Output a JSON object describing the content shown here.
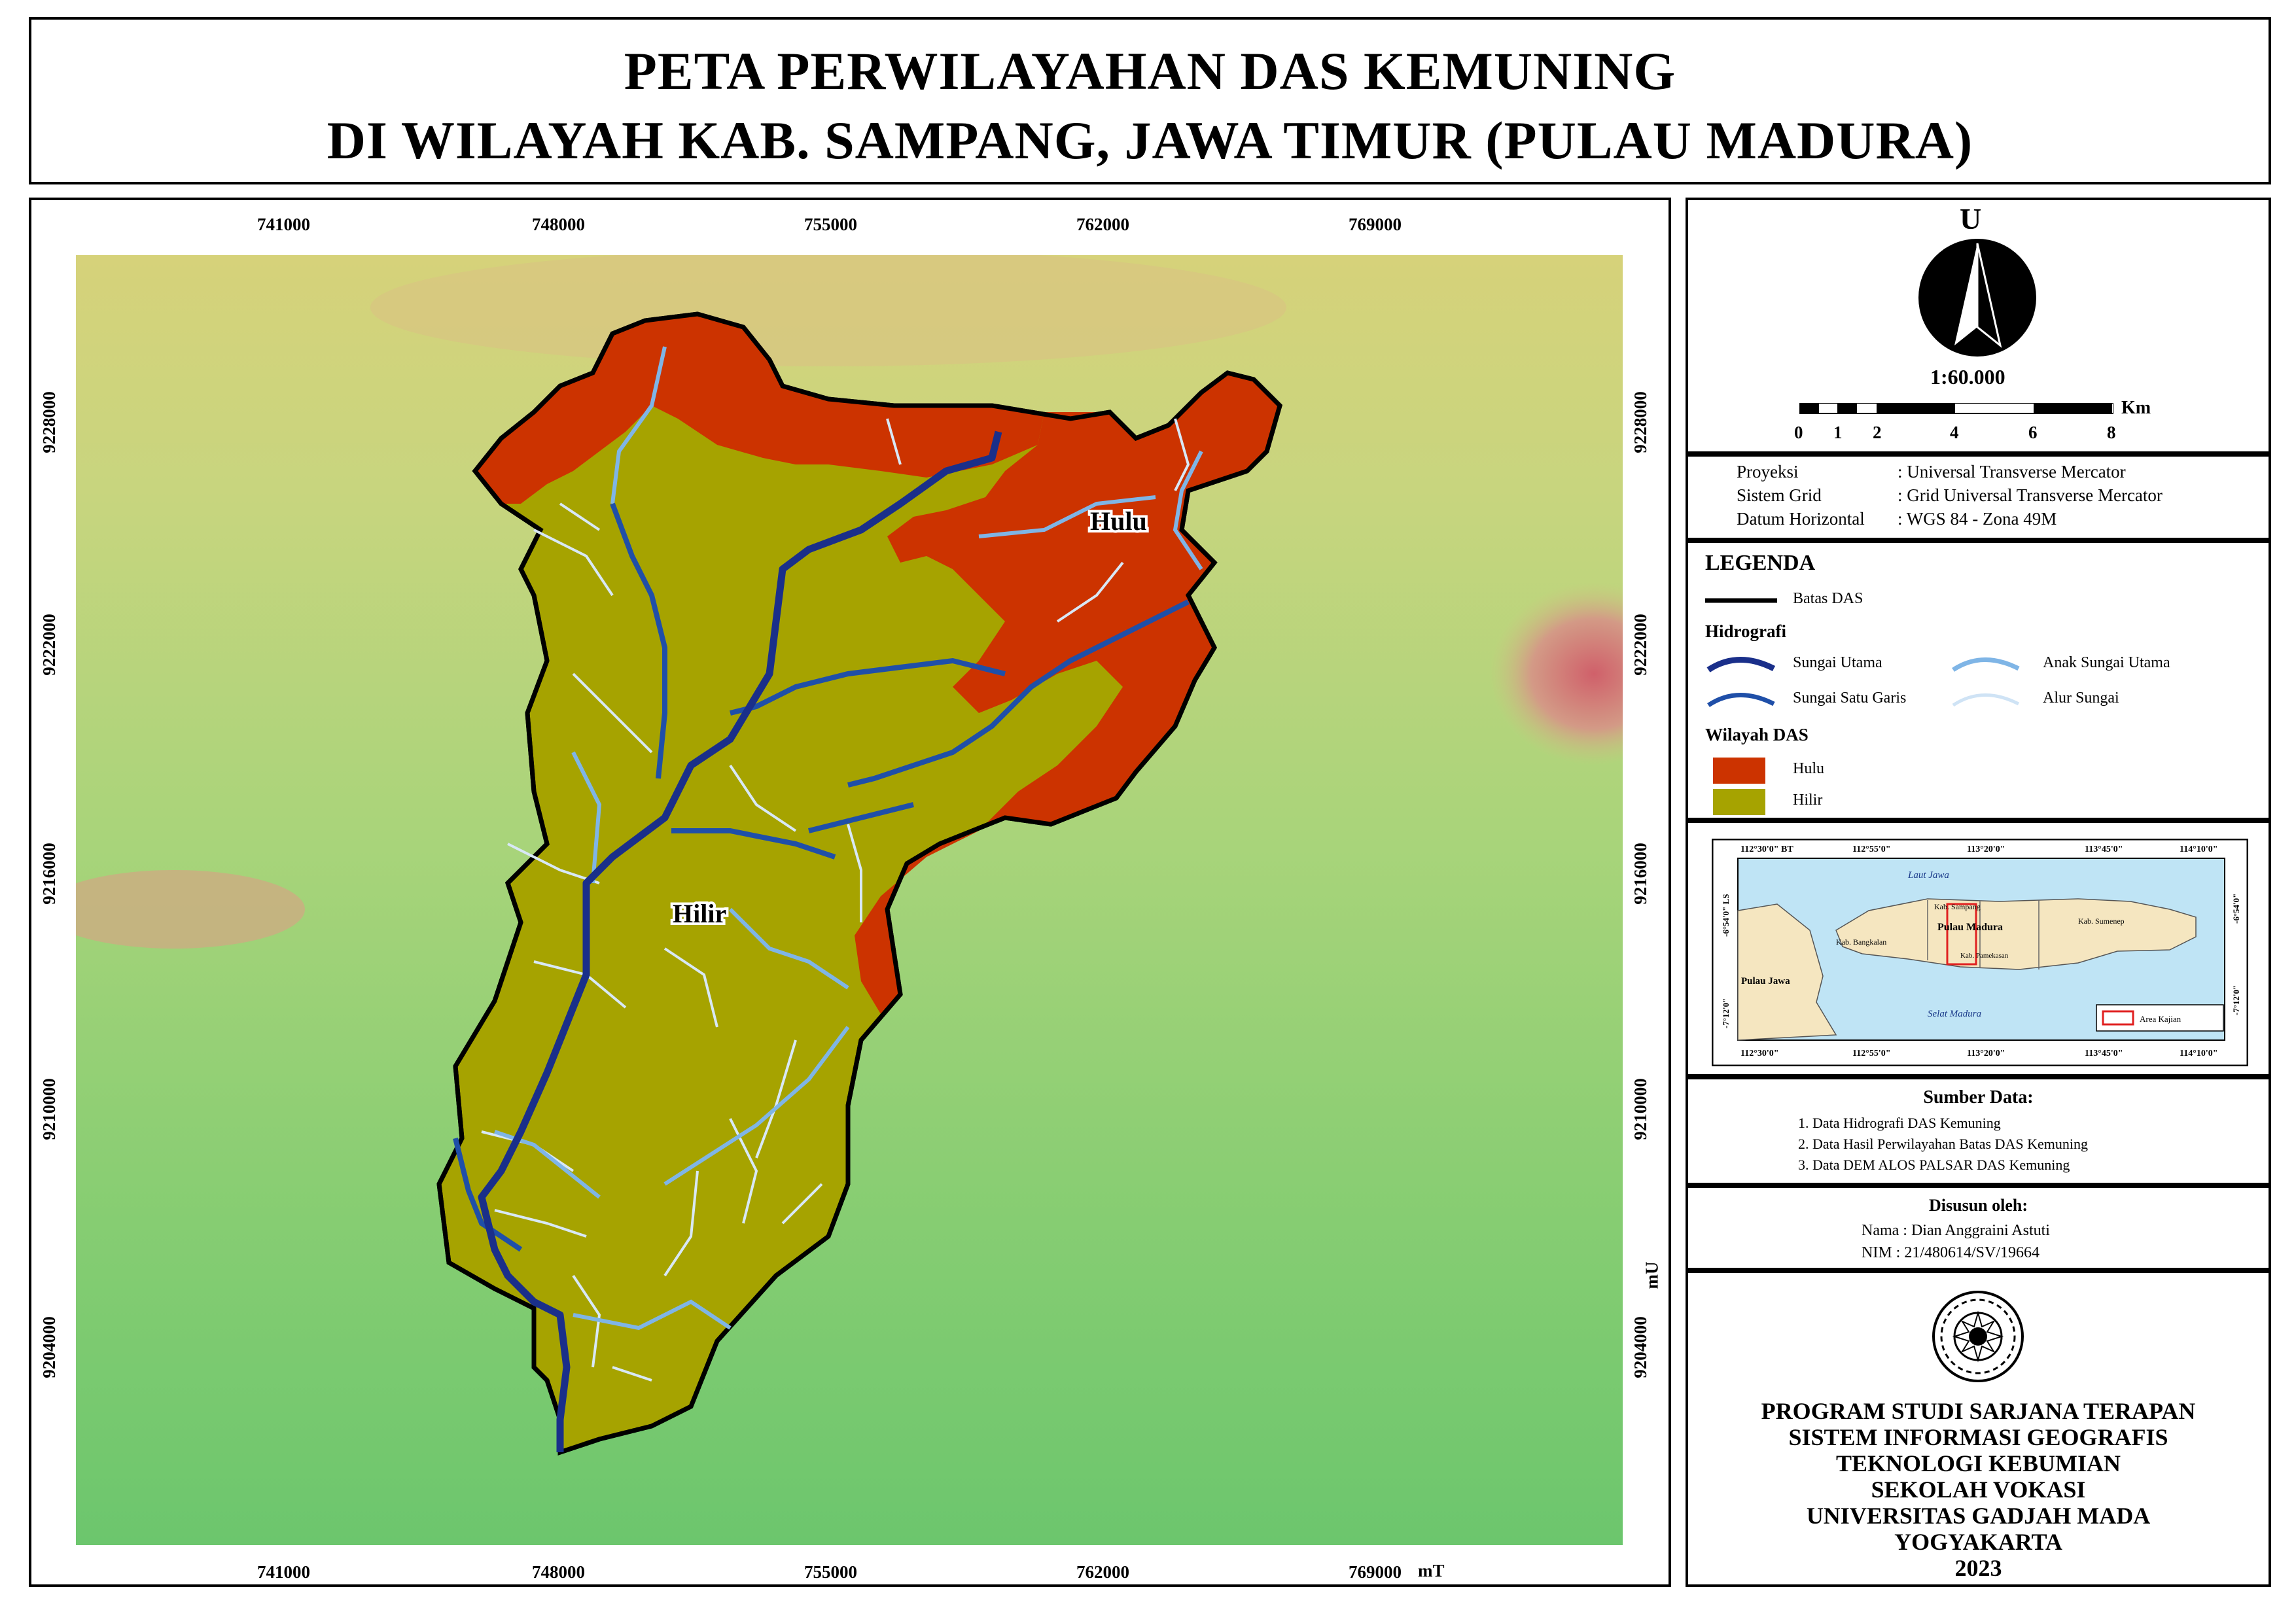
{
  "title": {
    "line1": "PETA PERWILAYAHAN DAS KEMUNING",
    "line2": "DI WILAYAH KAB. SAMPANG, JAWA TIMUR (PULAU MADURA)"
  },
  "map": {
    "x_ticks": [
      "741000",
      "748000",
      "755000",
      "762000",
      "769000"
    ],
    "x_unit": "mT",
    "y_ticks": [
      "9228000",
      "9222000",
      "9216000",
      "9210000",
      "9204000"
    ],
    "y_unit": "mU",
    "labels": {
      "hulu": "Hulu",
      "hilir": "Hilir"
    },
    "colors": {
      "hulu": "#cc3300",
      "hilir": "#a6a300",
      "river_main": "#1a2f8a",
      "river_single": "#1f4fa8",
      "tributary": "#7fb5e6",
      "stream": "#cfe3f5",
      "boundary": "#000000"
    }
  },
  "north": {
    "label": "U",
    "scale": "1:60.000"
  },
  "scalebar": {
    "ticks": [
      "0",
      "1",
      "2",
      "4",
      "6",
      "8"
    ],
    "unit": "Km"
  },
  "projection": {
    "rows": [
      {
        "key": "Proyeksi",
        "value": ": Universal Transverse Mercator"
      },
      {
        "key": "Sistem Grid",
        "value": ": Grid Universal Transverse Mercator"
      },
      {
        "key": "Datum Horizontal",
        "value": ": WGS 84 - Zona 49M"
      }
    ]
  },
  "legend": {
    "title": "LEGENDA",
    "boundary": "Batas DAS",
    "hydro_title": "Hidrografi",
    "sungai_utama": "Sungai Utama",
    "anak_sungai": "Anak Sungai Utama",
    "sungai_satu_garis": "Sungai Satu Garis",
    "alur_sungai": "Alur Sungai",
    "wilayah_title": "Wilayah DAS",
    "hulu": "Hulu",
    "hilir": "Hilir"
  },
  "inset": {
    "top_ticks": [
      "112°30'0\" BT",
      "112°55'0\"",
      "113°20'0\"",
      "113°45'0\"",
      "114°10'0\""
    ],
    "bottom_ticks": [
      "112°30'0\"",
      "112°55'0\"",
      "113°20'0\"",
      "113°45'0\"",
      "114°10'0\""
    ],
    "left_ticks": [
      "-6°54'0\" LS",
      "-7°12'0\""
    ],
    "right_ticks": [
      "-6°54'0\"",
      "-7°12'0\""
    ],
    "sea_north": "Laut Jawa",
    "sea_south": "Selat Madura",
    "island": "Pulau Madura",
    "java": "Pulau Jawa",
    "kab_sampang": "Kab. Sampang",
    "kab_bangkalan": "Kab. Bangkalan",
    "kab_pamekasan": "Kab. Pamekasan",
    "kab_sumenep": "Kab. Sumenep",
    "area_label": "Area Kajian"
  },
  "sources": {
    "title": "Sumber Data:",
    "items": [
      "1. Data Hidrografi DAS Kemuning",
      "2. Data Hasil Perwilayahan Batas DAS Kemuning",
      "3. Data DEM ALOS PALSAR DAS Kemuning"
    ]
  },
  "author": {
    "title": "Disusun oleh:",
    "name": "Nama : Dian Anggraini Astuti",
    "nim": "NIM   : 21/480614/SV/19664"
  },
  "institution": {
    "lines": [
      "PROGRAM STUDI SARJANA TERAPAN",
      "SISTEM INFORMASI GEOGRAFIS",
      "TEKNOLOGI KEBUMIAN",
      "SEKOLAH VOKASI",
      "UNIVERSITAS GADJAH MADA",
      "YOGYAKARTA",
      "2023"
    ]
  }
}
